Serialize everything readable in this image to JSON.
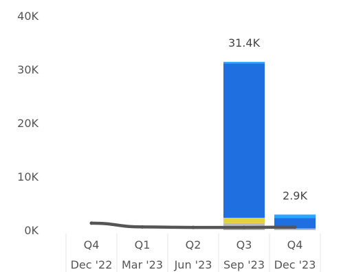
{
  "chart_data": {
    "type": "bar",
    "stacked": true,
    "categories": [
      {
        "top": "Q4",
        "bottom": "Dec '22"
      },
      {
        "top": "Q1",
        "bottom": "Mar '23"
      },
      {
        "top": "Q2",
        "bottom": "Jun '23"
      },
      {
        "top": "Q3",
        "bottom": "Sep '23"
      },
      {
        "top": "Q4",
        "bottom": "Dec '23"
      }
    ],
    "series": [
      {
        "color": "#bbbbbb",
        "values": [
          0,
          0,
          0,
          1300,
          300
        ]
      },
      {
        "color": "#e0d43c",
        "values": [
          0,
          0,
          0,
          1000,
          0
        ]
      },
      {
        "color": "#1f6fe0",
        "values": [
          0,
          0,
          0,
          28800,
          1950
        ]
      },
      {
        "color": "#2aa6ff",
        "values": [
          0,
          0,
          0,
          300,
          650
        ]
      }
    ],
    "totals": [
      null,
      null,
      null,
      31400,
      2900
    ],
    "data_labels": [
      "",
      "",
      "",
      "31.4K",
      "2.9K"
    ],
    "line": {
      "color": "#555555",
      "values": [
        1300,
        600,
        500,
        500,
        550
      ]
    },
    "yticks": [
      "0K",
      "10K",
      "20K",
      "30K",
      "40K"
    ],
    "ylim": [
      0,
      40000
    ],
    "grid": false,
    "legend": "none"
  }
}
